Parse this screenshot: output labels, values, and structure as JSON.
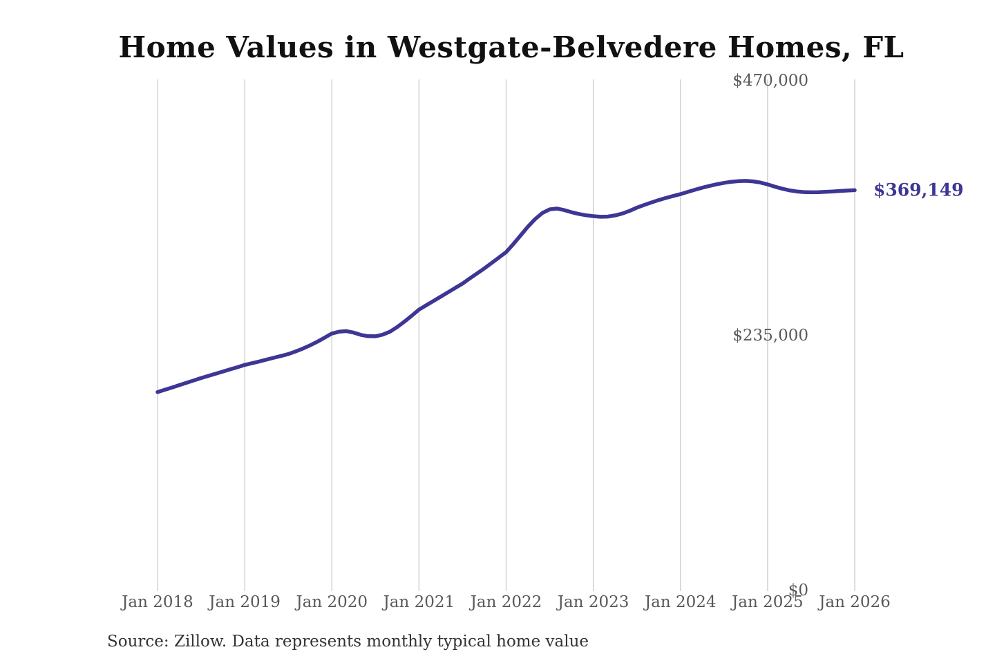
{
  "chart": {
    "title": "Home Values in Westgate-Belvedere Homes, FL",
    "end_label": "$369,149",
    "source": "Source: Zillow. Data represents monthly typical home value",
    "line_color": "#3d3695",
    "grid_color": "#cccccc",
    "axis_label_color": "#595959",
    "title_color": "#111111"
  },
  "chart_data": {
    "type": "line",
    "title": "Home Values in Westgate-Belvedere Homes, FL",
    "xlabel": "",
    "ylabel": "",
    "x_range": [
      "Jan 2018",
      "Jan 2026"
    ],
    "frequency": "monthly",
    "x_tick_labels": [
      "Jan 2018",
      "Jan 2019",
      "Jan 2020",
      "Jan 2021",
      "Jan 2022",
      "Jan 2023",
      "Jan 2024",
      "Jan 2025",
      "Jan 2026"
    ],
    "y_ticks": [
      {
        "value": 0,
        "label": "$0"
      },
      {
        "value": 235000,
        "label": "$235,000"
      },
      {
        "value": 470000,
        "label": "$470,000"
      }
    ],
    "ylim": [
      0,
      470000
    ],
    "grid": "vertical-only",
    "legend": "none",
    "end_value": 369149,
    "annotations": [
      {
        "text": "$369,149",
        "x": "Jan 2026",
        "y": 369149
      }
    ],
    "series": [
      {
        "name": "Monthly typical home value",
        "values": [
          183000,
          185100,
          187200,
          189400,
          191500,
          193700,
          195900,
          197900,
          199900,
          201900,
          203900,
          205900,
          208000,
          209600,
          211200,
          212900,
          214600,
          216300,
          218000,
          220400,
          223000,
          226000,
          229400,
          233100,
          237000,
          238600,
          239200,
          237800,
          235700,
          234500,
          234400,
          235900,
          238600,
          242900,
          248000,
          253400,
          259000,
          263000,
          267000,
          271000,
          275000,
          279000,
          283000,
          287800,
          292400,
          297000,
          302000,
          307000,
          312000,
          319500,
          327500,
          335500,
          342500,
          348200,
          351500,
          352200,
          350800,
          348800,
          347200,
          346000,
          345200,
          344600,
          344800,
          345900,
          347600,
          350100,
          353000,
          355500,
          357800,
          360000,
          362000,
          363800,
          365500,
          367500,
          369500,
          371400,
          373100,
          374600,
          375900,
          376900,
          377500,
          377700,
          377300,
          376200,
          374500,
          372400,
          370500,
          369000,
          368000,
          367400,
          367200,
          367300,
          367600,
          368000,
          368400,
          368800,
          369149
        ]
      }
    ]
  }
}
